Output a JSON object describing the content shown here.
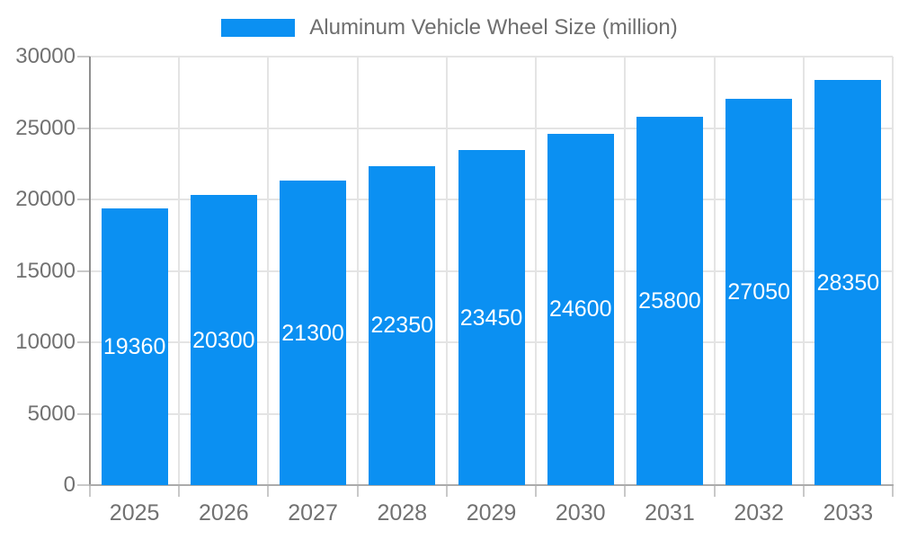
{
  "legend": {
    "label": "Aluminum Vehicle Wheel Size (million)"
  },
  "colors": {
    "bar": "#0b90f2",
    "bar_value_text": "#ffffff",
    "axis_label_text": "#717171",
    "legend_text": "#6e6e6e",
    "gridline": "#e4e4e4",
    "y_axis_line": "#8f8f8f",
    "x_axis_line": "#ababab",
    "tick": "#c9c9c9",
    "background": "#ffffff"
  },
  "chart_data": {
    "type": "bar",
    "title": "Aluminum Vehicle Wheel Size (million)",
    "series_name": "Aluminum Vehicle Wheel Size (million)",
    "categories": [
      "2025",
      "2026",
      "2027",
      "2028",
      "2029",
      "2030",
      "2031",
      "2032",
      "2033"
    ],
    "values": [
      19360,
      20300,
      21300,
      22350,
      23450,
      24600,
      25800,
      27050,
      28350
    ],
    "xlabel": "",
    "ylabel": "",
    "ylim": [
      0,
      30000
    ],
    "yticks": [
      0,
      5000,
      10000,
      15000,
      20000,
      25000,
      30000
    ],
    "grid": true,
    "legend_position": "top-center",
    "value_labels": "inside bars, vertically centered, white"
  }
}
